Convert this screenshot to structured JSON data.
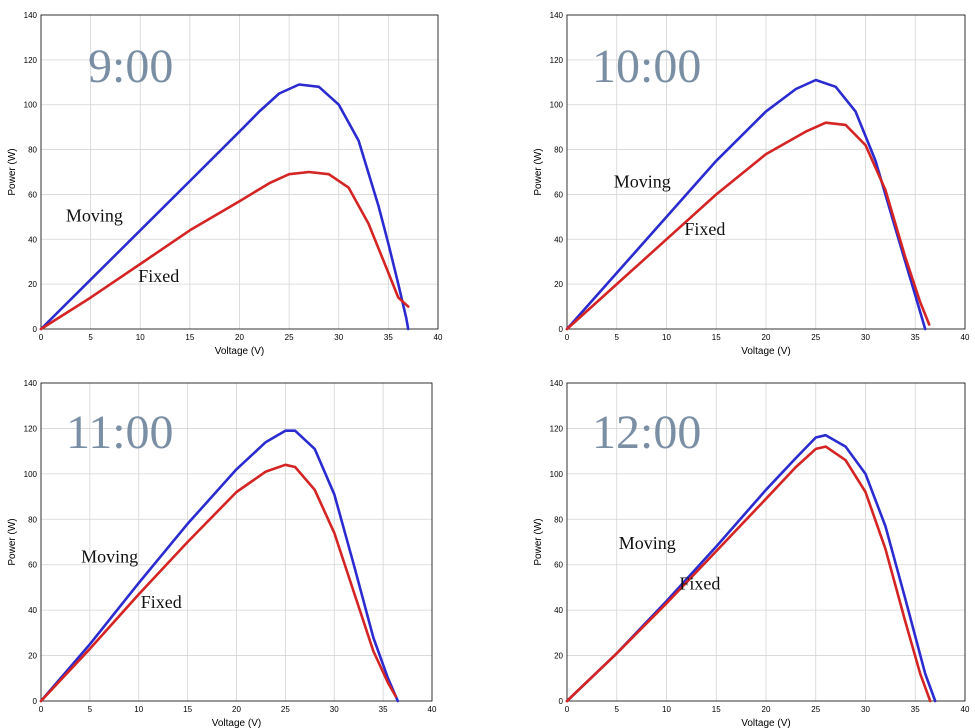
{
  "chart_data": [
    {
      "type": "line",
      "title": "9:00",
      "xlabel": "Voltage (V)",
      "ylabel": "Power (W)",
      "xlim": [
        0,
        40
      ],
      "ylim": [
        0,
        140
      ],
      "xticks": [
        0,
        5,
        10,
        15,
        20,
        25,
        30,
        35,
        40
      ],
      "yticks": [
        0,
        20,
        40,
        60,
        80,
        100,
        120,
        140
      ],
      "grid": true,
      "series": [
        {
          "name": "Moving",
          "color": "#2b2bd0",
          "x": [
            0,
            5,
            10,
            15,
            20,
            22,
            24,
            26,
            28,
            30,
            32,
            34,
            35,
            36,
            36.8,
            37
          ],
          "y": [
            0,
            22,
            44,
            66,
            88,
            97,
            105,
            109,
            108,
            100,
            84,
            55,
            38,
            20,
            5,
            0
          ]
        },
        {
          "name": "Fixed",
          "color": "#d42424",
          "x": [
            0,
            5,
            10,
            15,
            20,
            23,
            25,
            27,
            29,
            31,
            33,
            35,
            36,
            37
          ],
          "y": [
            0,
            14,
            29,
            44,
            57,
            65,
            69,
            70,
            69,
            63,
            47,
            25,
            14,
            10
          ]
        }
      ],
      "annotations": [
        {
          "text": "Moving",
          "x": 2.5,
          "y": 48
        },
        {
          "text": "Fixed",
          "x": 9.8,
          "y": 21
        }
      ]
    },
    {
      "type": "line",
      "title": "10:00",
      "xlabel": "Voltage (V)",
      "ylabel": "Power (W)",
      "xlim": [
        0,
        40
      ],
      "ylim": [
        0,
        140
      ],
      "xticks": [
        0,
        5,
        10,
        15,
        20,
        25,
        30,
        35,
        40
      ],
      "yticks": [
        0,
        20,
        40,
        60,
        80,
        100,
        120,
        140
      ],
      "grid": true,
      "series": [
        {
          "name": "Moving",
          "color": "#2b2bd0",
          "x": [
            0,
            5,
            10,
            15,
            20,
            23,
            25,
            27,
            29,
            31,
            33,
            35,
            36
          ],
          "y": [
            0,
            25,
            50,
            75,
            97,
            107,
            111,
            108,
            97,
            75,
            45,
            15,
            0
          ]
        },
        {
          "name": "Fixed",
          "color": "#d42424",
          "x": [
            0,
            5,
            10,
            15,
            20,
            24,
            26,
            28,
            30,
            32,
            34,
            35.5,
            36.4
          ],
          "y": [
            0,
            20,
            40,
            60,
            78,
            88,
            92,
            91,
            82,
            62,
            32,
            12,
            2
          ]
        }
      ],
      "annotations": [
        {
          "text": "Moving",
          "x": 4.7,
          "y": 63
        },
        {
          "text": "Fixed",
          "x": 11.8,
          "y": 42
        }
      ]
    },
    {
      "type": "line",
      "title": "11:00",
      "xlabel": "Voltage (V)",
      "ylabel": "Power (W)",
      "xlim": [
        0,
        40
      ],
      "ylim": [
        0,
        140
      ],
      "xticks": [
        0,
        5,
        10,
        15,
        20,
        25,
        30,
        35,
        40
      ],
      "yticks": [
        0,
        20,
        40,
        60,
        80,
        100,
        120,
        140
      ],
      "grid": true,
      "series": [
        {
          "name": "Moving",
          "color": "#2b2bd0",
          "x": [
            0,
            5,
            10,
            15,
            20,
            23,
            25,
            26,
            28,
            30,
            32,
            34,
            35.5,
            36.5
          ],
          "y": [
            0,
            25,
            52,
            78,
            102,
            114,
            119,
            119,
            111,
            91,
            60,
            28,
            10,
            0
          ]
        },
        {
          "name": "Fixed",
          "color": "#d42424",
          "x": [
            0,
            5,
            10,
            15,
            20,
            23,
            25,
            26,
            28,
            30,
            32,
            34,
            35.5,
            36.3
          ],
          "y": [
            0,
            23,
            47,
            70,
            92,
            101,
            104,
            103,
            93,
            74,
            48,
            22,
            8,
            2
          ]
        }
      ],
      "annotations": [
        {
          "text": "Moving",
          "x": 4.1,
          "y": 61
        },
        {
          "text": "Fixed",
          "x": 10.2,
          "y": 41
        }
      ]
    },
    {
      "type": "line",
      "title": "12:00",
      "xlabel": "Voltage (V)",
      "ylabel": "Power (W)",
      "xlim": [
        0,
        40
      ],
      "ylim": [
        0,
        140
      ],
      "xticks": [
        0,
        5,
        10,
        15,
        20,
        25,
        30,
        35,
        40
      ],
      "yticks": [
        0,
        20,
        40,
        60,
        80,
        100,
        120,
        140
      ],
      "grid": true,
      "series": [
        {
          "name": "Moving",
          "color": "#2b2bd0",
          "x": [
            0,
            5,
            10,
            15,
            20,
            23,
            25,
            26,
            28,
            30,
            32,
            34,
            36,
            37
          ],
          "y": [
            0,
            21,
            44,
            68,
            93,
            107,
            116,
            117,
            112,
            100,
            77,
            45,
            12,
            0
          ]
        },
        {
          "name": "Fixed",
          "color": "#d42424",
          "x": [
            0,
            5,
            10,
            15,
            20,
            23,
            25,
            26,
            28,
            30,
            32,
            34,
            35.5,
            36.5
          ],
          "y": [
            0,
            21,
            43,
            66,
            89,
            103,
            111,
            112,
            106,
            92,
            67,
            35,
            12,
            0
          ]
        }
      ],
      "annotations": [
        {
          "text": "Moving",
          "x": 5.2,
          "y": 67
        },
        {
          "text": "Fixed",
          "x": 11.3,
          "y": 49
        }
      ]
    }
  ]
}
